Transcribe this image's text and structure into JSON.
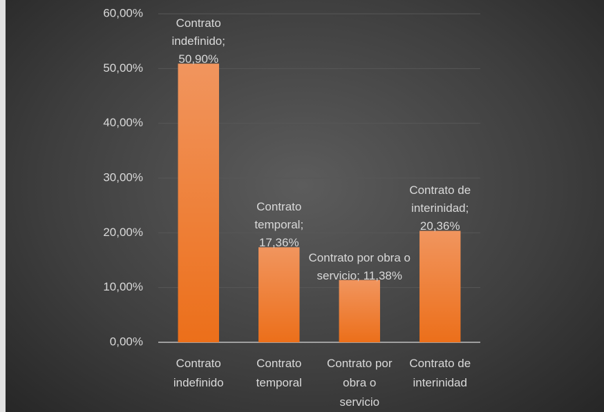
{
  "chart_data": {
    "type": "bar",
    "categories": [
      "Contrato indefinido",
      "Contrato temporal",
      "Contrato por obra o servicio",
      "Contrato de interinidad"
    ],
    "values": [
      50.9,
      17.36,
      11.38,
      20.36
    ],
    "value_labels": [
      "Contrato indefinido; 50,90%",
      "Contrato temporal; 17,36%",
      "Contrato por obra o servicio; 11,38%",
      "Contrato de interinidad; 20,36%"
    ],
    "color": "#ee7726",
    "ylim": [
      0,
      60
    ],
    "yticks": [
      {
        "value": 0,
        "label": "0,00%"
      },
      {
        "value": 10,
        "label": "10,00%"
      },
      {
        "value": 20,
        "label": "20,00%"
      },
      {
        "value": 30,
        "label": "30,00%"
      },
      {
        "value": 40,
        "label": "40,00%"
      },
      {
        "value": 50,
        "label": "50,00%"
      },
      {
        "value": 60,
        "label": "60,00%"
      }
    ],
    "grid": true
  }
}
